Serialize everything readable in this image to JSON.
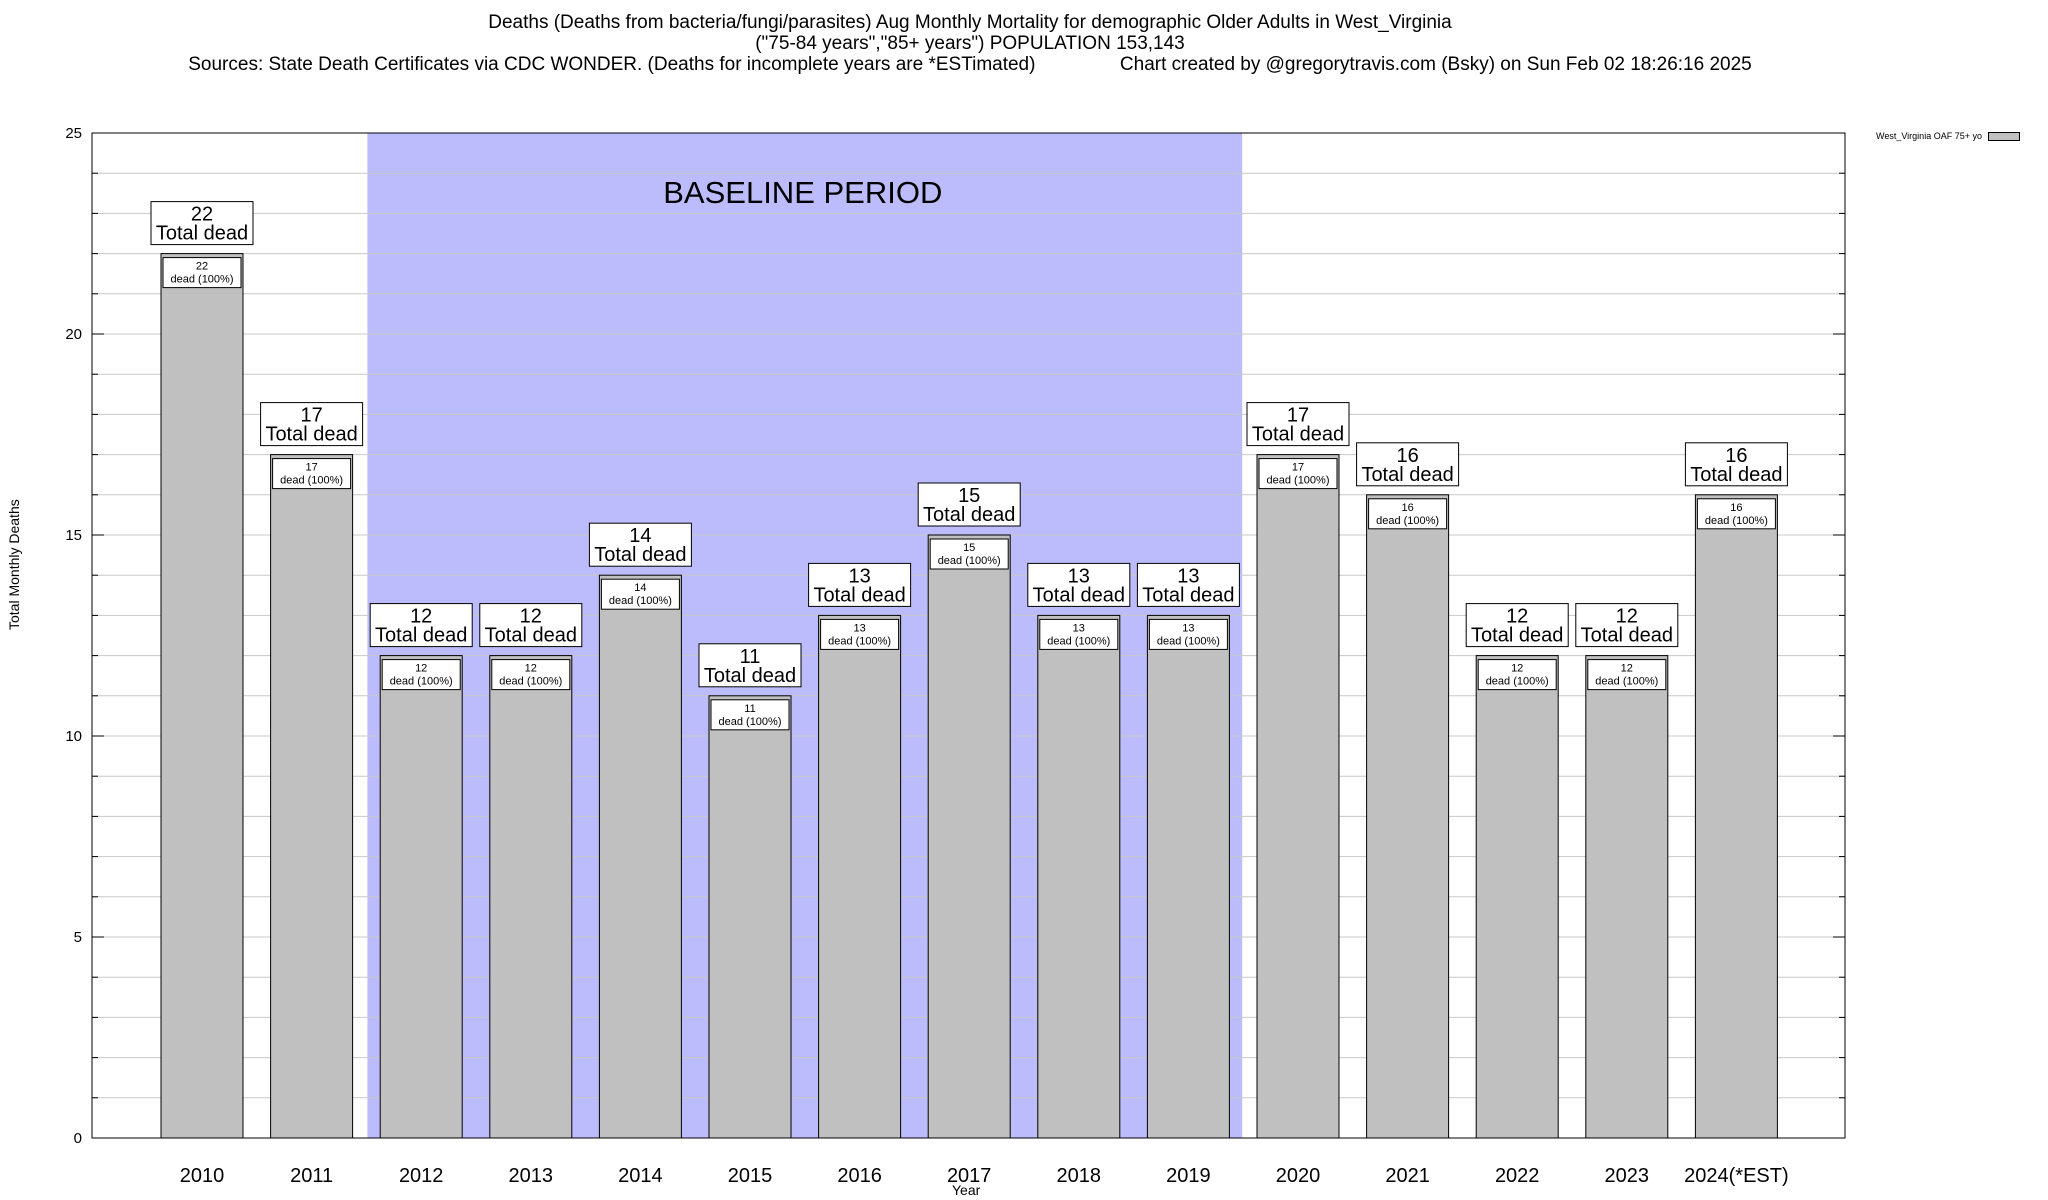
{
  "chart_data": {
    "type": "bar",
    "title_lines": [
      "Deaths (Deaths from bacteria/fungi/parasites) Aug Monthly Mortality for demographic Older Adults in West_Virginia",
      "(\"75-84 years\",\"85+ years\") POPULATION 153,143",
      "Sources: State Death Certificates via CDC WONDER. (Deaths for incomplete years are *ESTimated)                Chart created by @gregorytravis.com (Bsky) on Sun Feb 02 18:26:16 2025"
    ],
    "xlabel": "Year",
    "ylabel": "Total Monthly Deaths",
    "ylim": [
      0,
      25
    ],
    "yticks": [
      0,
      5,
      10,
      15,
      20,
      25
    ],
    "grid": true,
    "legend": {
      "position": "top-right",
      "label": "West_Virginia OAF 75+ yo",
      "color": "#c0c0c0"
    },
    "baseline": {
      "label": "BASELINE PERIOD",
      "start": "2012",
      "end": "2019",
      "color": "#bcbcfc"
    },
    "categories": [
      "2010",
      "2011",
      "2012",
      "2013",
      "2014",
      "2015",
      "2016",
      "2017",
      "2018",
      "2019",
      "2020",
      "2021",
      "2022",
      "2023",
      "2024(*EST)"
    ],
    "series": [
      {
        "name": "West_Virginia OAF 75+ yo",
        "values": [
          22,
          17,
          12,
          12,
          14,
          11,
          13,
          15,
          13,
          13,
          17,
          16,
          12,
          12,
          16
        ]
      }
    ],
    "top_label_suffix": "Total dead",
    "inner_label_suffix": "dead (100%)",
    "bar_color": "#c0c0c0"
  }
}
